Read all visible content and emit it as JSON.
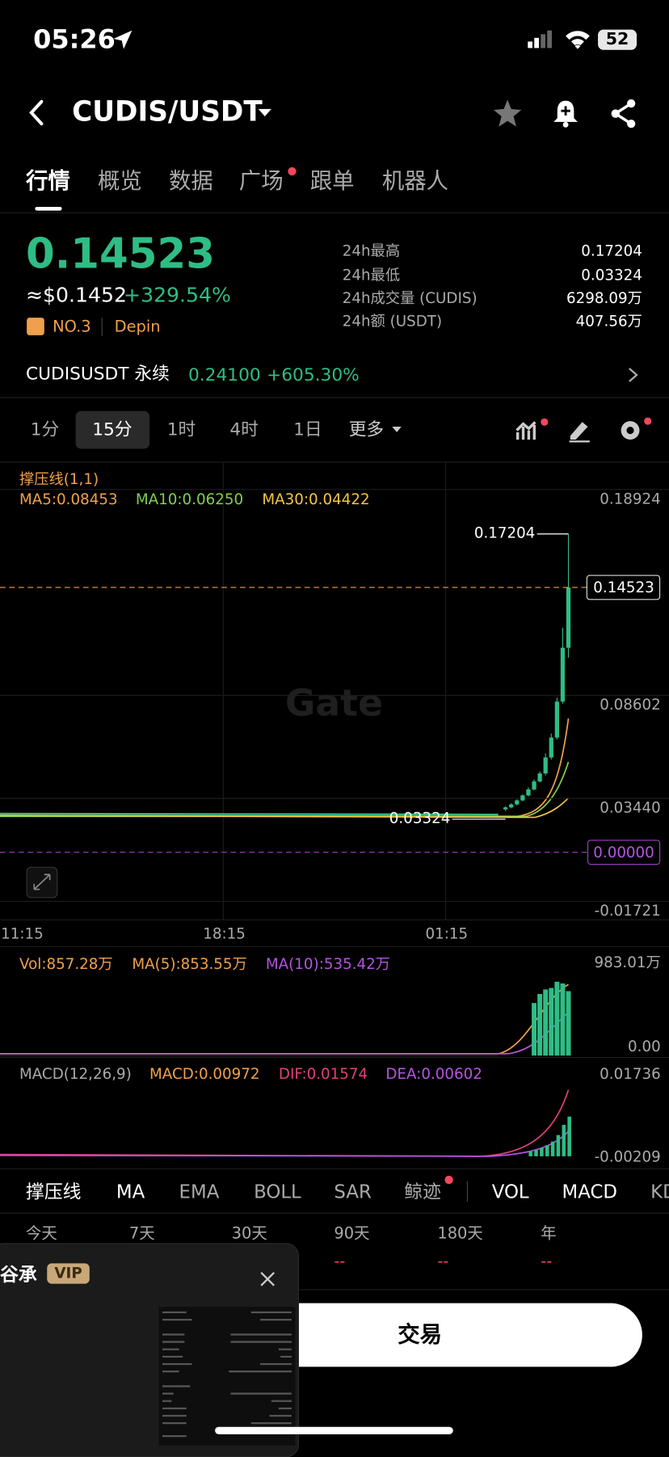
{
  "status": {
    "time": "05:26",
    "battery": "52"
  },
  "header": {
    "pair": "CUDIS/USDT"
  },
  "tabs": [
    "行情",
    "概览",
    "数据",
    "广场",
    "跟单",
    "机器人"
  ],
  "price": {
    "last": "0.14523",
    "usd": "≈$0.1452",
    "change": "+329.54%",
    "rank": "NO.3",
    "tag": "Depin"
  },
  "stats": [
    {
      "label": "24h最高",
      "value": "0.17204"
    },
    {
      "label": "24h最低",
      "value": "0.03324"
    },
    {
      "label": "24h成交量 (CUDIS)",
      "value": "6298.09万"
    },
    {
      "label": "24h额 (USDT)",
      "value": "407.56万"
    }
  ],
  "perp": {
    "name": "CUDISUSDT 永续",
    "price": "0.24100",
    "change": "+605.30%"
  },
  "intervals": [
    "1分",
    "15分",
    "1时",
    "4时",
    "1日",
    "更多"
  ],
  "chart_data": {
    "type": "candlestick",
    "legend_title": "撑压线(1,1)",
    "indicators": [
      "MA5:0.08453",
      "MA10:0.06250",
      "MA30:0.04422"
    ],
    "ylim": [
      -0.01721,
      0.18924
    ],
    "yticks": [
      0.18924,
      0.08602,
      {
        "value": 0.0344,
        "label": "0.03440"
      },
      -0.01721
    ],
    "last_price": 0.14523,
    "zero_line": {
      "value": 0,
      "label": "0.00000"
    },
    "high_label": "0.17204",
    "low_label": "0.03324",
    "xticks": [
      "11:15",
      "18:15",
      "01:15"
    ],
    "open": [
      0.034,
      0.035,
      0.0365,
      0.0385,
      0.041,
      0.044,
      0.048,
      0.052,
      0.06,
      0.07,
      0.088,
      0.115
    ],
    "close": [
      0.035,
      0.0365,
      0.0385,
      0.041,
      0.044,
      0.048,
      0.052,
      0.06,
      0.07,
      0.088,
      0.115,
      0.14523
    ],
    "high": [
      0.0355,
      0.037,
      0.039,
      0.0415,
      0.045,
      0.049,
      0.053,
      0.062,
      0.072,
      0.09,
      0.125,
      0.17204
    ],
    "low": [
      0.03324,
      0.0345,
      0.036,
      0.038,
      0.0405,
      0.0435,
      0.0475,
      0.051,
      0.059,
      0.069,
      0.087,
      0.11
    ],
    "colors": {
      "up": "#2ebd85",
      "ma5": "#f0a04b",
      "ma10": "#7fd14c",
      "ma30": "#f5c542"
    }
  },
  "volume": {
    "legend": [
      "Vol:857.28万",
      "MA(5):853.55万",
      "MA(10):535.42万"
    ],
    "ylim": [
      0,
      983.01
    ],
    "yticks": [
      {
        "value": 983.01,
        "label": "983.01万"
      },
      {
        "value": 0,
        "label": "0.00"
      }
    ],
    "values": [
      700,
      820,
      880,
      900,
      983.01,
      960,
      857.28
    ]
  },
  "macd": {
    "legend": [
      "MACD(12,26,9)",
      "MACD:0.00972",
      "DIF:0.01574",
      "DEA:0.00602"
    ],
    "labels": [
      "0.01736",
      "-0.00209"
    ]
  },
  "indicator_tabs": [
    "撑压线",
    "MA",
    "EMA",
    "BOLL",
    "SAR",
    "鲸迹",
    "VOL",
    "MACD",
    "KD"
  ],
  "periods": [
    "今天",
    "7天",
    "30天",
    "90天",
    "180天",
    "年"
  ],
  "period_values": [
    "--",
    "--",
    "--"
  ],
  "popup": {
    "name": "谷承",
    "badge": "VIP"
  },
  "trade_button": "交易",
  "watermark": "Gate"
}
